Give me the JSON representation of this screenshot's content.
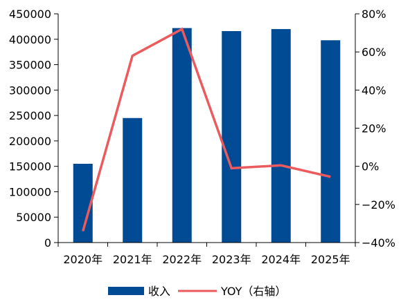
{
  "chart_data": {
    "type": "bar",
    "categories": [
      "2020年",
      "2021年",
      "2022年",
      "2023年",
      "2024年",
      "2025年"
    ],
    "series": [
      {
        "name": "收入",
        "type": "bar",
        "axis": "left",
        "values": [
          155000,
          245000,
          422000,
          416000,
          420000,
          398000
        ]
      },
      {
        "name": "YOY（右轴）",
        "type": "line",
        "axis": "right",
        "unit": "%",
        "values": [
          -34,
          58,
          72,
          -1,
          0.5,
          -5.5
        ]
      }
    ],
    "y_left": {
      "min": 0,
      "max": 450000,
      "ticks": [
        "0",
        "50000",
        "100000",
        "150000",
        "200000",
        "250000",
        "300000",
        "350000",
        "400000",
        "450000"
      ]
    },
    "y_right": {
      "min": -40,
      "max": 80,
      "ticks": [
        "−40%",
        "−20%",
        "0%",
        "20%",
        "40%",
        "60%",
        "80%"
      ]
    },
    "grid": false,
    "legend_position": "bottom",
    "colors": {
      "bar": "#004b93",
      "line": "#eb5b5e",
      "axis": "#000000"
    }
  }
}
